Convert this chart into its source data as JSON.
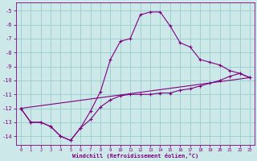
{
  "xlabel": "Windchill (Refroidissement éolien,°C)",
  "bg_color": "#cce8e8",
  "grid_color": "#99cccc",
  "line_color": "#800080",
  "xlim": [
    -0.5,
    23.5
  ],
  "ylim": [
    -14.6,
    -4.4
  ],
  "yticks": [
    -14,
    -13,
    -12,
    -11,
    -10,
    -9,
    -8,
    -7,
    -6,
    -5
  ],
  "xticks": [
    0,
    1,
    2,
    3,
    4,
    5,
    6,
    7,
    8,
    9,
    10,
    11,
    12,
    13,
    14,
    15,
    16,
    17,
    18,
    19,
    20,
    21,
    22,
    23
  ],
  "line1_x": [
    0,
    1,
    2,
    3,
    4,
    5,
    6,
    7,
    8,
    9,
    10,
    11,
    12,
    13,
    14,
    15,
    16,
    17,
    18,
    19,
    20,
    21,
    22,
    23
  ],
  "line1_y": [
    -12.0,
    -13.0,
    -13.0,
    -13.3,
    -14.0,
    -14.3,
    -13.4,
    -12.2,
    -10.8,
    -8.5,
    -7.2,
    -7.0,
    -5.3,
    -5.1,
    -5.1,
    -6.1,
    -7.3,
    -7.6,
    -8.5,
    -8.7,
    -8.9,
    -9.3,
    -9.5,
    -9.8
  ],
  "line2_x": [
    0,
    1,
    2,
    3,
    4,
    5,
    6,
    7,
    8,
    9,
    10,
    11,
    12,
    13,
    14,
    15,
    16,
    17,
    18,
    19,
    20,
    21,
    22,
    23
  ],
  "line2_y": [
    -12.0,
    -13.0,
    -13.0,
    -13.3,
    -14.0,
    -14.3,
    -13.4,
    -12.8,
    -11.9,
    -11.4,
    -11.1,
    -11.0,
    -11.0,
    -11.0,
    -10.9,
    -10.9,
    -10.7,
    -10.6,
    -10.4,
    -10.2,
    -10.0,
    -9.7,
    -9.5,
    -9.8
  ],
  "line3_x": [
    0,
    23
  ],
  "line3_y": [
    -12.0,
    -9.8
  ]
}
